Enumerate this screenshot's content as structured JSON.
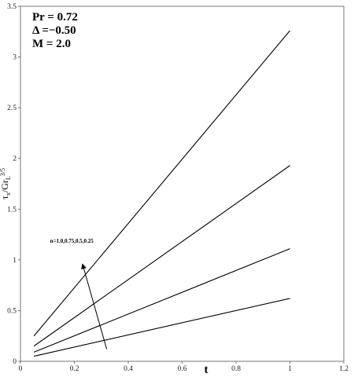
{
  "chart_data": {
    "type": "line",
    "x": [
      0.05,
      1.0
    ],
    "series": [
      {
        "values": [
          0.25,
          3.26
        ]
      },
      {
        "values": [
          0.15,
          1.93
        ]
      },
      {
        "values": [
          0.09,
          1.11
        ]
      },
      {
        "values": [
          0.05,
          0.62
        ]
      }
    ],
    "xlim": [
      0,
      1.2
    ],
    "ylim": [
      0,
      3.5
    ],
    "xticks": [
      "0",
      "0.2",
      "0.4",
      "0.6",
      "0.8",
      "1",
      "1.2"
    ],
    "yticks": [
      "0",
      "0.5",
      "1",
      "1.5",
      "2",
      "2.5",
      "3",
      "3.5"
    ],
    "xlabel": "t",
    "ylabel": "τx/Gr_L^{3/5}",
    "ylabel_main": "τ",
    "ylabel_sub": "x",
    "ylabel_mid": "/Gr",
    "ylabel_sub2": "L",
    "ylabel_sup": "3/5",
    "grid": false,
    "params": [
      "Pr =  0.72",
      "Δ =−0.50",
      "M =    2.0"
    ],
    "annotation": {
      "text": "n=1.0,0.75,0.5,0.25",
      "arrow_from": [
        0.32,
        0.12
      ],
      "arrow_to": [
        0.23,
        0.96
      ],
      "label_at": [
        0.11,
        1.17
      ]
    }
  }
}
